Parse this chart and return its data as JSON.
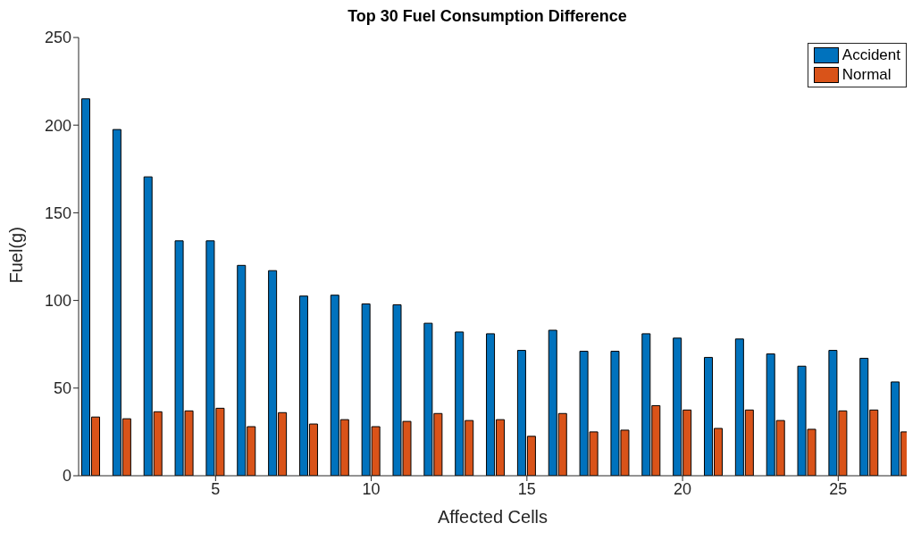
{
  "chart_data": {
    "type": "bar",
    "title": "Top 30 Fuel Consumption Difference",
    "xlabel": "Affected Cells",
    "ylabel": "Fuel(g)",
    "x": [
      1,
      2,
      3,
      4,
      5,
      6,
      7,
      8,
      9,
      10,
      11,
      12,
      13,
      14,
      15,
      16,
      17,
      18,
      19,
      20,
      21,
      22,
      23,
      24,
      25,
      26,
      27
    ],
    "series": [
      {
        "name": "Accident",
        "color": "#0072bd",
        "values": [
          215,
          197.5,
          170.5,
          134,
          134,
          120,
          117,
          102.5,
          103,
          98,
          97.5,
          87,
          82,
          81,
          71.5,
          83,
          71,
          71,
          81,
          78.5,
          67.5,
          78,
          69.5,
          62.5,
          71.5,
          67,
          53.5
        ]
      },
      {
        "name": "Normal",
        "color": "#d95319",
        "values": [
          33.5,
          32.5,
          36.5,
          37,
          38.5,
          28,
          36,
          29.5,
          32,
          28,
          31,
          35.5,
          31.5,
          32,
          22.5,
          35.5,
          25,
          26,
          40,
          37.5,
          27,
          37.5,
          31.5,
          26.5,
          37,
          37.5,
          25
        ]
      }
    ],
    "xlim": [
      0.6,
      27.2
    ],
    "xticks": [
      5,
      10,
      15,
      20,
      25
    ],
    "ylim": [
      0,
      250
    ],
    "yticks": [
      0,
      50,
      100,
      150,
      200,
      250
    ],
    "legend": "top right"
  }
}
